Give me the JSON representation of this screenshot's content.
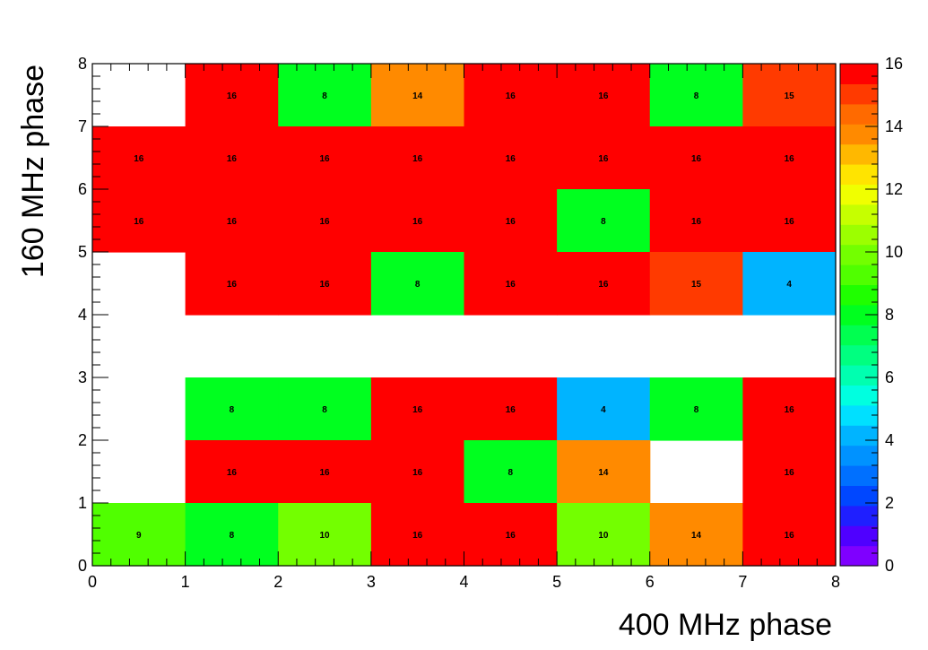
{
  "chart_data": {
    "type": "heatmap",
    "title": "",
    "xlabel": "400 MHz phase",
    "ylabel": "160 MHz phase",
    "xlim": [
      0,
      8
    ],
    "ylim": [
      0,
      8
    ],
    "zlim": [
      0,
      16
    ],
    "x_ticks": [
      "0",
      "1",
      "2",
      "3",
      "4",
      "5",
      "6",
      "7",
      "8"
    ],
    "y_ticks": [
      "0",
      "1",
      "2",
      "3",
      "4",
      "5",
      "6",
      "7",
      "8"
    ],
    "z_ticks": [
      "0",
      "2",
      "4",
      "6",
      "8",
      "10",
      "12",
      "14",
      "16"
    ],
    "grid": false,
    "legend_position": "right",
    "rows_top_to_bottom": [
      [
        null,
        16,
        8,
        14,
        16,
        16,
        8,
        15
      ],
      [
        16,
        16,
        16,
        16,
        16,
        16,
        16,
        16
      ],
      [
        16,
        16,
        16,
        16,
        16,
        8,
        16,
        16
      ],
      [
        null,
        16,
        16,
        8,
        16,
        16,
        15,
        4
      ],
      [
        null,
        null,
        null,
        null,
        null,
        null,
        null,
        null
      ],
      [
        null,
        8,
        8,
        16,
        16,
        4,
        8,
        16
      ],
      [
        null,
        16,
        16,
        16,
        8,
        14,
        null,
        16
      ],
      [
        9,
        8,
        10,
        16,
        16,
        10,
        14,
        16
      ]
    ],
    "palette": [
      "#7f00ff",
      "#4f00ff",
      "#1f1fff",
      "#0047ff",
      "#0070ff",
      "#0092ff",
      "#00b4ff",
      "#00e0ff",
      "#00ffe0",
      "#00ffb0",
      "#00ff80",
      "#00ff50",
      "#00ff1f",
      "#1fff00",
      "#50ff00",
      "#73ff00",
      "#9cff00",
      "#c6ff00",
      "#f0ff00",
      "#ffe400",
      "#ffb800",
      "#ff8a00",
      "#ff6a00",
      "#ff3a00",
      "#ff0000"
    ]
  }
}
